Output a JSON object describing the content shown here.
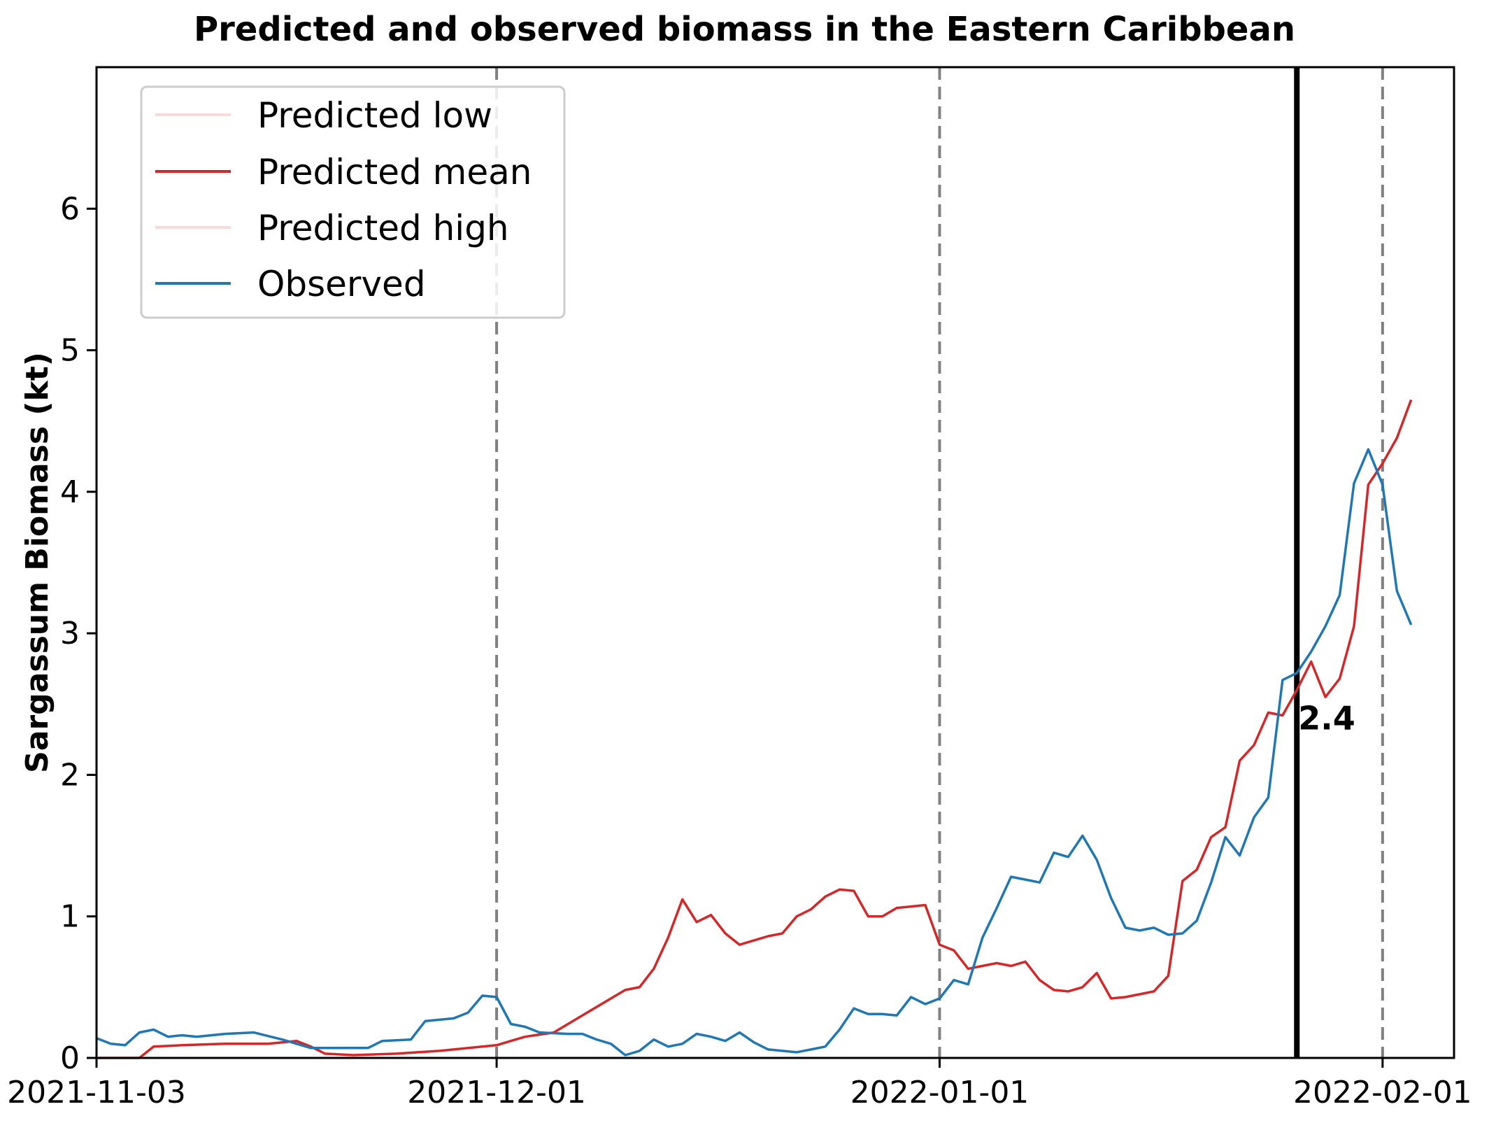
{
  "chart_data": {
    "type": "line",
    "title": "Predicted and observed biomass in the Eastern Caribbean",
    "xlabel": "",
    "ylabel": "Sargassum Biomass (kt)",
    "xlim": [
      "2021-11-03",
      "2022-02-06"
    ],
    "ylim": [
      0,
      7
    ],
    "x_ticks": [
      "2021-11-03",
      "2021-12-01",
      "2022-01-01",
      "2022-02-01"
    ],
    "y_ticks": [
      0,
      1,
      2,
      3,
      4,
      5,
      6
    ],
    "grid": false,
    "legend_position": "top-left",
    "legend": [
      "Predicted low",
      "Predicted mean",
      "Predicted high",
      "Observed"
    ],
    "colors": {
      "predicted_low": "#f9d9d9",
      "predicted_mean": "#d62728",
      "predicted_high": "#f9d9d9",
      "observed": "#1f77b4",
      "vline_month": "#808080",
      "vline_now": "#000000"
    },
    "vlines_dashed": [
      "2021-12-01",
      "2022-01-01",
      "2022-02-01"
    ],
    "vline_solid": "2022-01-26",
    "annotation": {
      "text": "2.4",
      "x": "2022-01-26",
      "y": 2.4
    },
    "series": [
      {
        "name": "Predicted mean",
        "points": [
          [
            "2021-11-03",
            0.0
          ],
          [
            "2021-11-06",
            0.0
          ],
          [
            "2021-11-07",
            0.08
          ],
          [
            "2021-11-09",
            0.09
          ],
          [
            "2021-11-12",
            0.1
          ],
          [
            "2021-11-15",
            0.1
          ],
          [
            "2021-11-17",
            0.12
          ],
          [
            "2021-11-18",
            0.08
          ],
          [
            "2021-11-19",
            0.03
          ],
          [
            "2021-11-21",
            0.02
          ],
          [
            "2021-11-24",
            0.03
          ],
          [
            "2021-11-27",
            0.05
          ],
          [
            "2021-11-30",
            0.08
          ],
          [
            "2021-12-01",
            0.09
          ],
          [
            "2021-12-02",
            0.12
          ],
          [
            "2021-12-03",
            0.15
          ],
          [
            "2021-12-05",
            0.18
          ],
          [
            "2021-12-07",
            0.3
          ],
          [
            "2021-12-09",
            0.42
          ],
          [
            "2021-12-10",
            0.48
          ],
          [
            "2021-12-11",
            0.5
          ],
          [
            "2021-12-12",
            0.63
          ],
          [
            "2021-12-13",
            0.85
          ],
          [
            "2021-12-14",
            1.12
          ],
          [
            "2021-12-15",
            0.96
          ],
          [
            "2021-12-16",
            1.01
          ],
          [
            "2021-12-17",
            0.88
          ],
          [
            "2021-12-18",
            0.8
          ],
          [
            "2021-12-19",
            0.83
          ],
          [
            "2021-12-20",
            0.86
          ],
          [
            "2021-12-21",
            0.88
          ],
          [
            "2021-12-22",
            1.0
          ],
          [
            "2021-12-23",
            1.05
          ],
          [
            "2021-12-24",
            1.14
          ],
          [
            "2021-12-25",
            1.19
          ],
          [
            "2021-12-26",
            1.18
          ],
          [
            "2021-12-27",
            1.0
          ],
          [
            "2021-12-28",
            1.0
          ],
          [
            "2021-12-29",
            1.06
          ],
          [
            "2021-12-30",
            1.07
          ],
          [
            "2021-12-31",
            1.08
          ],
          [
            "2022-01-01",
            0.8
          ],
          [
            "2022-01-02",
            0.76
          ],
          [
            "2022-01-03",
            0.63
          ],
          [
            "2022-01-04",
            0.65
          ],
          [
            "2022-01-05",
            0.67
          ],
          [
            "2022-01-06",
            0.65
          ],
          [
            "2022-01-07",
            0.68
          ],
          [
            "2022-01-08",
            0.55
          ],
          [
            "2022-01-09",
            0.48
          ],
          [
            "2022-01-10",
            0.47
          ],
          [
            "2022-01-11",
            0.5
          ],
          [
            "2022-01-12",
            0.6
          ],
          [
            "2022-01-13",
            0.42
          ],
          [
            "2022-01-14",
            0.43
          ],
          [
            "2022-01-15",
            0.45
          ],
          [
            "2022-01-16",
            0.47
          ],
          [
            "2022-01-17",
            0.58
          ],
          [
            "2022-01-18",
            1.25
          ],
          [
            "2022-01-19",
            1.33
          ],
          [
            "2022-01-20",
            1.56
          ],
          [
            "2022-01-21",
            1.63
          ],
          [
            "2022-01-22",
            2.1
          ],
          [
            "2022-01-23",
            2.21
          ],
          [
            "2022-01-24",
            2.44
          ],
          [
            "2022-01-25",
            2.42
          ],
          [
            "2022-01-26",
            2.6
          ],
          [
            "2022-01-27",
            2.8
          ],
          [
            "2022-01-28",
            2.55
          ],
          [
            "2022-01-29",
            2.68
          ],
          [
            "2022-01-30",
            3.05
          ],
          [
            "2022-01-31",
            4.05
          ],
          [
            "2022-02-01",
            4.2
          ],
          [
            "2022-02-02",
            4.38
          ],
          [
            "2022-02-03",
            4.65
          ]
        ]
      },
      {
        "name": "Observed",
        "points": [
          [
            "2021-11-03",
            0.14
          ],
          [
            "2021-11-04",
            0.1
          ],
          [
            "2021-11-05",
            0.09
          ],
          [
            "2021-11-06",
            0.18
          ],
          [
            "2021-11-07",
            0.2
          ],
          [
            "2021-11-08",
            0.15
          ],
          [
            "2021-11-09",
            0.16
          ],
          [
            "2021-11-10",
            0.15
          ],
          [
            "2021-11-12",
            0.17
          ],
          [
            "2021-11-14",
            0.18
          ],
          [
            "2021-11-16",
            0.13
          ],
          [
            "2021-11-18",
            0.07
          ],
          [
            "2021-11-20",
            0.07
          ],
          [
            "2021-11-22",
            0.07
          ],
          [
            "2021-11-23",
            0.12
          ],
          [
            "2021-11-25",
            0.13
          ],
          [
            "2021-11-26",
            0.26
          ],
          [
            "2021-11-28",
            0.28
          ],
          [
            "2021-11-29",
            0.32
          ],
          [
            "2021-11-30",
            0.44
          ],
          [
            "2021-12-01",
            0.43
          ],
          [
            "2021-12-02",
            0.24
          ],
          [
            "2021-12-03",
            0.22
          ],
          [
            "2021-12-04",
            0.18
          ],
          [
            "2021-12-06",
            0.17
          ],
          [
            "2021-12-07",
            0.17
          ],
          [
            "2021-12-08",
            0.13
          ],
          [
            "2021-12-09",
            0.1
          ],
          [
            "2021-12-10",
            0.02
          ],
          [
            "2021-12-11",
            0.05
          ],
          [
            "2021-12-12",
            0.13
          ],
          [
            "2021-12-13",
            0.08
          ],
          [
            "2021-12-14",
            0.1
          ],
          [
            "2021-12-15",
            0.17
          ],
          [
            "2021-12-16",
            0.15
          ],
          [
            "2021-12-17",
            0.12
          ],
          [
            "2021-12-18",
            0.18
          ],
          [
            "2021-12-19",
            0.11
          ],
          [
            "2021-12-20",
            0.06
          ],
          [
            "2021-12-21",
            0.05
          ],
          [
            "2021-12-22",
            0.04
          ],
          [
            "2021-12-23",
            0.06
          ],
          [
            "2021-12-24",
            0.08
          ],
          [
            "2021-12-25",
            0.2
          ],
          [
            "2021-12-26",
            0.35
          ],
          [
            "2021-12-27",
            0.31
          ],
          [
            "2021-12-28",
            0.31
          ],
          [
            "2021-12-29",
            0.3
          ],
          [
            "2021-12-30",
            0.43
          ],
          [
            "2021-12-31",
            0.38
          ],
          [
            "2022-01-01",
            0.42
          ],
          [
            "2022-01-02",
            0.55
          ],
          [
            "2022-01-03",
            0.52
          ],
          [
            "2022-01-04",
            0.85
          ],
          [
            "2022-01-05",
            1.06
          ],
          [
            "2022-01-06",
            1.28
          ],
          [
            "2022-01-07",
            1.26
          ],
          [
            "2022-01-08",
            1.24
          ],
          [
            "2022-01-09",
            1.45
          ],
          [
            "2022-01-10",
            1.42
          ],
          [
            "2022-01-11",
            1.57
          ],
          [
            "2022-01-12",
            1.4
          ],
          [
            "2022-01-13",
            1.13
          ],
          [
            "2022-01-14",
            0.92
          ],
          [
            "2022-01-15",
            0.9
          ],
          [
            "2022-01-16",
            0.92
          ],
          [
            "2022-01-17",
            0.87
          ],
          [
            "2022-01-18",
            0.88
          ],
          [
            "2022-01-19",
            0.97
          ],
          [
            "2022-01-20",
            1.24
          ],
          [
            "2022-01-21",
            1.56
          ],
          [
            "2022-01-22",
            1.43
          ],
          [
            "2022-01-23",
            1.7
          ],
          [
            "2022-01-24",
            1.84
          ],
          [
            "2022-01-25",
            2.67
          ],
          [
            "2022-01-26",
            2.72
          ],
          [
            "2022-01-27",
            2.87
          ],
          [
            "2022-01-28",
            3.05
          ],
          [
            "2022-01-29",
            3.27
          ],
          [
            "2022-01-30",
            4.06
          ],
          [
            "2022-01-31",
            4.3
          ],
          [
            "2022-02-01",
            4.05
          ],
          [
            "2022-02-02",
            3.3
          ],
          [
            "2022-02-03",
            3.06
          ]
        ]
      }
    ]
  }
}
